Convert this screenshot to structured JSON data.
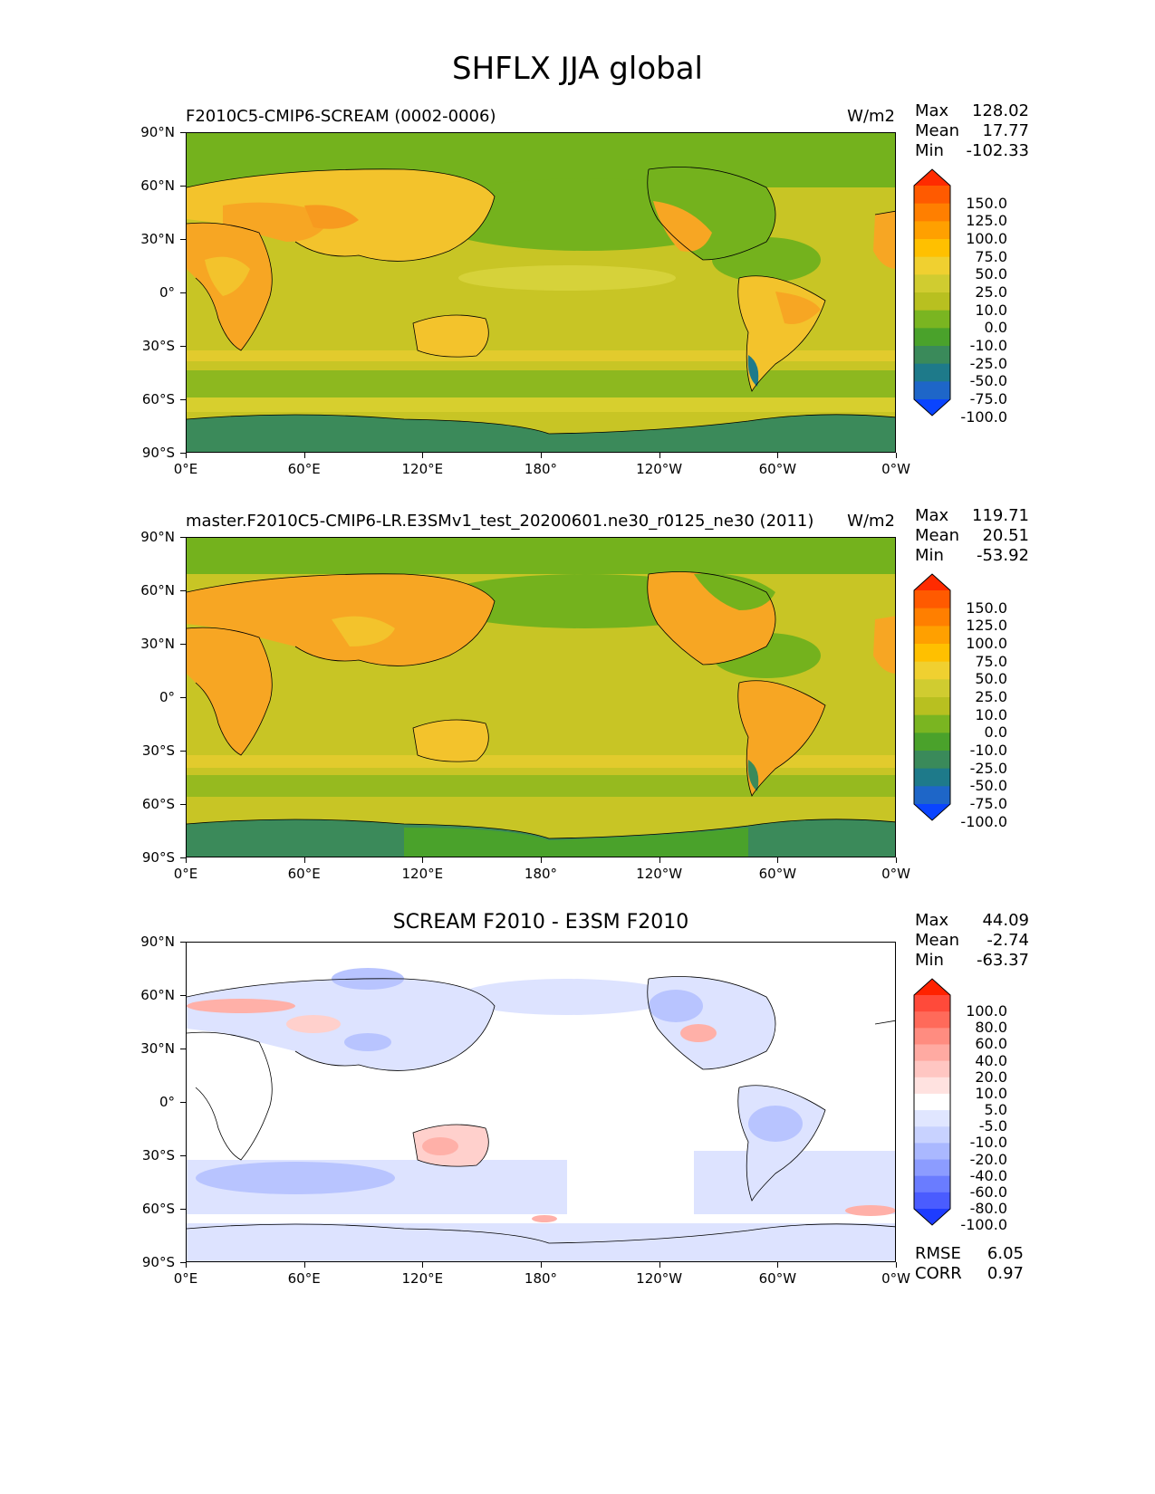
{
  "title": "SHFLX JJA global",
  "x_ticks": [
    "0°E",
    "60°E",
    "120°E",
    "180°",
    "120°W",
    "60°W",
    "0°W"
  ],
  "y_ticks": [
    "90°N",
    "60°N",
    "30°N",
    "0°",
    "30°S",
    "60°S",
    "90°S"
  ],
  "panels": [
    {
      "left_title": "F2010C5-CMIP6-SCREAM (0002-0006)",
      "center_title": "",
      "units": "W/m2",
      "stats": {
        "max_label": "Max",
        "max": "128.02",
        "mean_label": "Mean",
        "mean": "17.77",
        "min_label": "Min",
        "min": "-102.33"
      },
      "colorbar_labels": [
        "150.0",
        "125.0",
        "100.0",
        "75.0",
        "50.0",
        "25.0",
        "10.0",
        "0.0",
        "-10.0",
        "-25.0",
        "-50.0",
        "-75.0",
        "-100.0"
      ],
      "colorbar_colors": [
        "#ff2b00",
        "#ff5a00",
        "#ff7f00",
        "#ffa000",
        "#ffc000",
        "#f0d030",
        "#d0cc30",
        "#b8c020",
        "#7ab521",
        "#4aa22b",
        "#3a8a5a",
        "#1e7a8a",
        "#1e66c8",
        "#0a44ff"
      ],
      "colors": {
        "land_hot": "#f7a623",
        "land_warm": "#f3c32c",
        "ocean": "#c8c525",
        "cool": "#74b21d",
        "antarctic": "#3b8a5a"
      }
    },
    {
      "left_title": "master.F2010C5-CMIP6-LR.E3SMv1_test_20200601.ne30_r0125_ne30 (2011)",
      "center_title": "",
      "units": "W/m2",
      "stats": {
        "max_label": "Max",
        "max": "119.71",
        "mean_label": "Mean",
        "mean": "20.51",
        "min_label": "Min",
        "min": "-53.92"
      },
      "colorbar_labels": [
        "150.0",
        "125.0",
        "100.0",
        "75.0",
        "50.0",
        "25.0",
        "10.0",
        "0.0",
        "-10.0",
        "-25.0",
        "-50.0",
        "-75.0",
        "-100.0"
      ],
      "colorbar_colors": [
        "#ff2b00",
        "#ff5a00",
        "#ff7f00",
        "#ffa000",
        "#ffc000",
        "#f0d030",
        "#d0cc30",
        "#b8c020",
        "#7ab521",
        "#4aa22b",
        "#3a8a5a",
        "#1e7a8a",
        "#1e66c8",
        "#0a44ff"
      ],
      "colors": {
        "land_hot": "#f7a623",
        "land_warm": "#f3c32c",
        "ocean": "#c8c525",
        "cool": "#74b21d",
        "antarctic": "#3b8a5a"
      }
    },
    {
      "left_title": "",
      "center_title": "SCREAM F2010 - E3SM F2010",
      "units": "",
      "stats": {
        "max_label": "Max",
        "max": "44.09",
        "mean_label": "Mean",
        "mean": "-2.74",
        "min_label": "Min",
        "min": "-63.37"
      },
      "colorbar_labels": [
        "100.0",
        "80.0",
        "60.0",
        "40.0",
        "20.0",
        "10.0",
        "5.0",
        "-5.0",
        "-10.0",
        "-20.0",
        "-40.0",
        "-60.0",
        "-80.0",
        "-100.0"
      ],
      "colorbar_colors": [
        "#ff2200",
        "#ff4a3a",
        "#ff6a5a",
        "#ff8c80",
        "#ffaaa2",
        "#ffc6c2",
        "#ffe2e0",
        "#ffffff",
        "#e0e6ff",
        "#c8d2ff",
        "#aab8ff",
        "#8c9cff",
        "#6a7cff",
        "#4a5cff",
        "#1e3cff"
      ],
      "metrics": {
        "rmse_label": "RMSE",
        "rmse": "6.05",
        "corr_label": "CORR",
        "corr": "0.97"
      },
      "colors": {
        "pos": "#ffb0a8",
        "neg": "#b8c4ff",
        "neg_light": "#dde3ff",
        "neutral": "#ffffff"
      }
    }
  ]
}
